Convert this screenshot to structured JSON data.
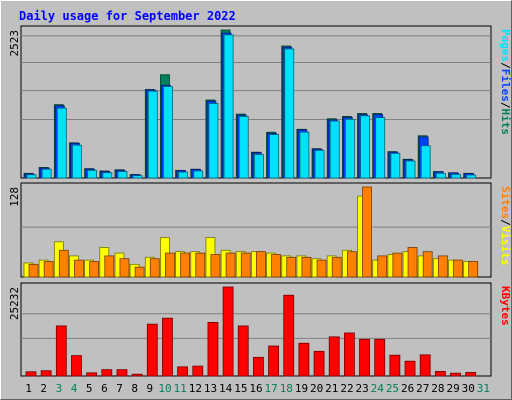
{
  "title": "Daily usage for September 2022",
  "colors": {
    "background": "#c0c0c0",
    "title_text": "#0000ff",
    "hits": "#00805c",
    "files": "#0040ff",
    "pages": "#00e0ff",
    "visits": "#ffff00",
    "sites": "#ff8000",
    "kbytes": "#ff0000",
    "weekend_day": "#00805c",
    "weekday": "#000000"
  },
  "chart_data": [
    {
      "type": "bar",
      "panel": "hits-files-pages",
      "ymax_label": "2523",
      "ylim": [
        0,
        2523
      ],
      "side_label_parts": [
        "Pages",
        "/",
        "Files",
        "/",
        "Hits"
      ],
      "categories": [
        "1",
        "2",
        "3",
        "4",
        "5",
        "6",
        "7",
        "8",
        "9",
        "10",
        "11",
        "12",
        "13",
        "14",
        "15",
        "16",
        "17",
        "18",
        "19",
        "20",
        "21",
        "22",
        "23",
        "24",
        "25",
        "26",
        "27",
        "28",
        "29",
        "30"
      ],
      "series": [
        {
          "name": "Hits",
          "values": [
            80,
            180,
            1250,
            600,
            160,
            120,
            140,
            60,
            1510,
            1760,
            130,
            150,
            1330,
            2523,
            1090,
            440,
            780,
            2250,
            830,
            500,
            1010,
            1050,
            1100,
            1100,
            450,
            320,
            720,
            110,
            90,
            80
          ]
        },
        {
          "name": "Files",
          "values": [
            70,
            170,
            1230,
            590,
            150,
            110,
            130,
            55,
            1500,
            1580,
            125,
            145,
            1310,
            2470,
            1070,
            430,
            760,
            2230,
            820,
            490,
            990,
            1030,
            1080,
            1080,
            440,
            310,
            700,
            105,
            85,
            75
          ]
        },
        {
          "name": "Pages",
          "values": [
            55,
            150,
            1190,
            560,
            130,
            90,
            110,
            40,
            1480,
            1560,
            100,
            120,
            1270,
            2440,
            1050,
            400,
            740,
            2200,
            780,
            470,
            970,
            1000,
            1060,
            1030,
            420,
            290,
            550,
            80,
            60,
            50
          ]
        }
      ]
    },
    {
      "type": "bar",
      "panel": "visits-sites",
      "ymax_label": "128",
      "ylim": [
        0,
        128
      ],
      "side_label_parts": [
        "Sites",
        "/",
        "Visits"
      ],
      "categories": [
        "1",
        "2",
        "3",
        "4",
        "5",
        "6",
        "7",
        "8",
        "9",
        "10",
        "11",
        "12",
        "13",
        "14",
        "15",
        "16",
        "17",
        "18",
        "19",
        "20",
        "21",
        "22",
        "23",
        "24",
        "25",
        "26",
        "27",
        "28",
        "29",
        "30"
      ],
      "series": [
        {
          "name": "Visits",
          "values": [
            20,
            24,
            50,
            30,
            24,
            42,
            34,
            18,
            28,
            56,
            36,
            36,
            56,
            38,
            36,
            36,
            34,
            30,
            30,
            26,
            30,
            38,
            115,
            24,
            32,
            36,
            30,
            26,
            24,
            22
          ]
        },
        {
          "name": "Sites",
          "values": [
            18,
            22,
            38,
            24,
            22,
            30,
            26,
            14,
            26,
            34,
            34,
            34,
            32,
            34,
            34,
            36,
            32,
            28,
            28,
            24,
            28,
            36,
            128,
            30,
            34,
            42,
            36,
            30,
            24,
            22
          ]
        }
      ]
    },
    {
      "type": "bar",
      "panel": "kbytes",
      "ymax_label": "25232",
      "ylim": [
        0,
        25232
      ],
      "side_label_parts": [
        "KBytes"
      ],
      "categories": [
        "1",
        "2",
        "3",
        "4",
        "5",
        "6",
        "7",
        "8",
        "9",
        "10",
        "11",
        "12",
        "13",
        "14",
        "15",
        "16",
        "17",
        "18",
        "19",
        "20",
        "21",
        "22",
        "23",
        "24",
        "25",
        "26",
        "27",
        "28",
        "29",
        "30"
      ],
      "series": [
        {
          "name": "KBytes",
          "values": [
            1200,
            1500,
            14200,
            5800,
            900,
            1800,
            1800,
            500,
            14700,
            16400,
            2600,
            2800,
            15200,
            25232,
            14200,
            5300,
            8500,
            22900,
            9300,
            7000,
            11100,
            12200,
            10400,
            10400,
            5900,
            4200,
            6000,
            1300,
            800,
            1000
          ]
        }
      ]
    }
  ],
  "x_axis": {
    "labels": [
      "1",
      "2",
      "3",
      "4",
      "5",
      "6",
      "7",
      "8",
      "9",
      "10",
      "11",
      "12",
      "13",
      "14",
      "15",
      "16",
      "17",
      "18",
      "19",
      "20",
      "21",
      "22",
      "23",
      "24",
      "25",
      "26",
      "27",
      "28",
      "29",
      "30",
      "31"
    ],
    "weekend": [
      false,
      false,
      true,
      true,
      false,
      false,
      false,
      false,
      false,
      true,
      true,
      false,
      false,
      false,
      false,
      false,
      true,
      true,
      false,
      false,
      false,
      false,
      false,
      true,
      true,
      false,
      false,
      false,
      false,
      false,
      true
    ]
  }
}
